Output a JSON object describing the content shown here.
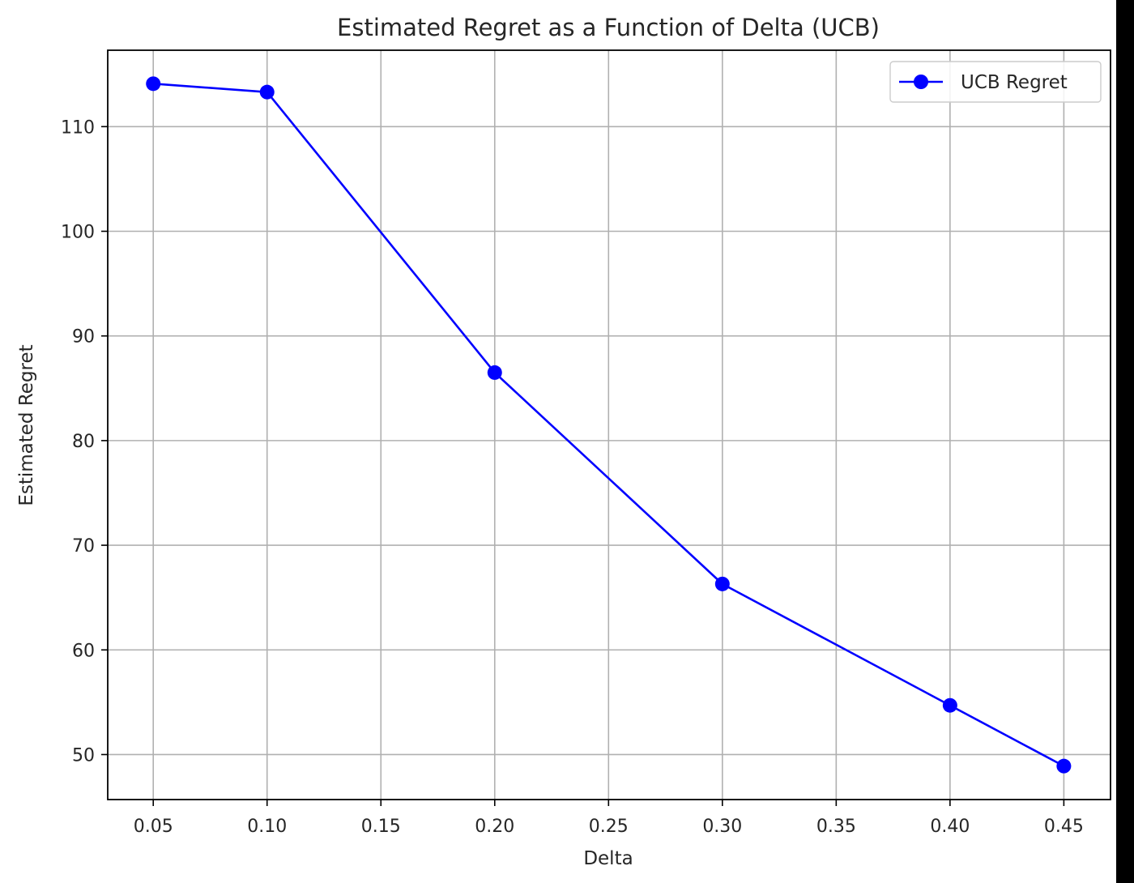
{
  "chart_data": {
    "type": "line",
    "title": "Estimated Regret as a Function of Delta (UCB)",
    "xlabel": "Delta",
    "ylabel": "Estimated Regret",
    "x_ticks": [
      "0.05",
      "0.10",
      "0.15",
      "0.20",
      "0.25",
      "0.30",
      "0.35",
      "0.40",
      "0.45"
    ],
    "y_ticks": [
      "50",
      "60",
      "70",
      "80",
      "90",
      "100",
      "110"
    ],
    "xlim": [
      0.03,
      0.4705
    ],
    "ylim": [
      45.7,
      117.3
    ],
    "grid": true,
    "legend_position": "top-right",
    "series": [
      {
        "name": "UCB Regret",
        "color": "#0000ff",
        "marker": "circle",
        "x": [
          0.05,
          0.1,
          0.2,
          0.3,
          0.4,
          0.45
        ],
        "y": [
          114.1,
          113.3,
          86.5,
          66.3,
          54.7,
          48.9
        ]
      }
    ]
  }
}
